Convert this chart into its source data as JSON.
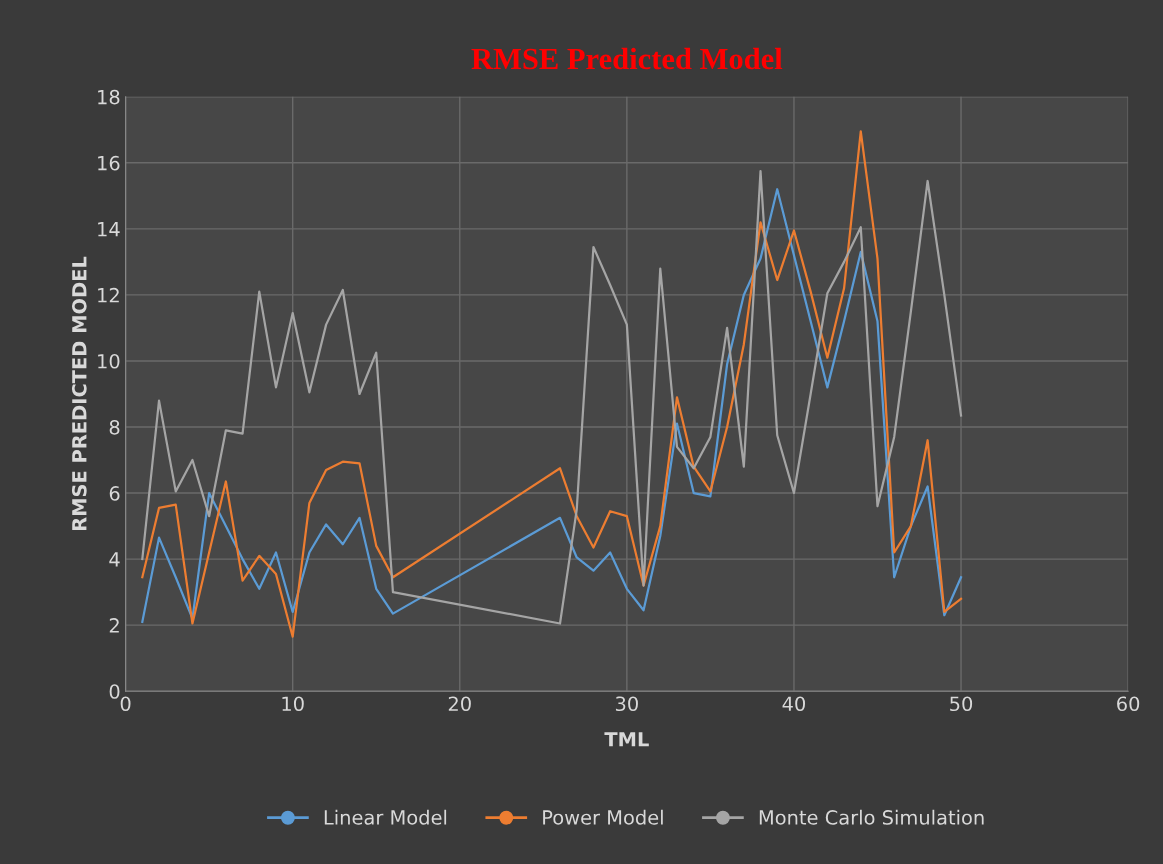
{
  "chart_data": {
    "type": "line",
    "title": "RMSE Predicted Model",
    "xlabel": "TML",
    "ylabel": "RMSE PREDICTED MODEL",
    "x": [
      1,
      2,
      3,
      4,
      5,
      6,
      7,
      8,
      9,
      10,
      11,
      12,
      13,
      14,
      15,
      16,
      26,
      27,
      28,
      29,
      30,
      31,
      32,
      33,
      34,
      35,
      36,
      37,
      38,
      39,
      40,
      41,
      42,
      43,
      44,
      45,
      46,
      47,
      48,
      49,
      50
    ],
    "series": [
      {
        "name": "Linear Model",
        "color": "#5b9bd5",
        "values": [
          2.1,
          4.65,
          3.45,
          2.2,
          6.0,
          5.0,
          4.0,
          3.1,
          4.2,
          2.4,
          4.2,
          5.05,
          4.45,
          5.25,
          3.1,
          2.35,
          5.25,
          4.05,
          3.65,
          4.2,
          3.1,
          2.45,
          4.7,
          8.1,
          6.0,
          5.9,
          9.9,
          12.0,
          13.1,
          15.2,
          13.2,
          11.2,
          9.2,
          11.2,
          13.3,
          11.2,
          3.45,
          5.0,
          6.2,
          2.3,
          3.45
        ]
      },
      {
        "name": "Power Model",
        "color": "#ed7d31",
        "values": [
          3.45,
          5.55,
          5.65,
          2.05,
          4.2,
          6.35,
          3.35,
          4.1,
          3.55,
          1.65,
          5.7,
          6.7,
          6.95,
          6.9,
          4.4,
          3.45,
          6.75,
          5.3,
          4.35,
          5.45,
          5.3,
          3.2,
          5.0,
          8.9,
          6.8,
          6.05,
          8.0,
          10.5,
          14.2,
          12.45,
          13.95,
          12.1,
          10.1,
          12.2,
          16.95,
          13.1,
          4.2,
          5.0,
          7.6,
          2.4,
          2.8
        ]
      },
      {
        "name": "Monte Carlo Simulation",
        "color": "#a5a5a5",
        "values": [
          4.0,
          8.8,
          6.05,
          7.0,
          5.3,
          7.9,
          7.8,
          12.1,
          9.2,
          11.45,
          9.05,
          11.1,
          12.15,
          9.0,
          10.25,
          3.0,
          2.05,
          5.5,
          13.45,
          12.3,
          11.1,
          3.2,
          12.8,
          7.4,
          6.75,
          7.7,
          11.0,
          6.8,
          15.75,
          7.75,
          6.0,
          9.0,
          12.05,
          13.0,
          14.05,
          5.6,
          7.7,
          11.5,
          15.45,
          12.0,
          8.35
        ]
      }
    ],
    "xlim": [
      0,
      60
    ],
    "xticks": [
      0,
      10,
      20,
      30,
      40,
      50,
      60
    ],
    "ylim": [
      0,
      18
    ],
    "yticks": [
      0,
      2,
      4,
      6,
      8,
      10,
      12,
      14,
      16,
      18
    ],
    "grid": true,
    "legend": "bottom",
    "marker": "none",
    "line_style": "solid"
  }
}
